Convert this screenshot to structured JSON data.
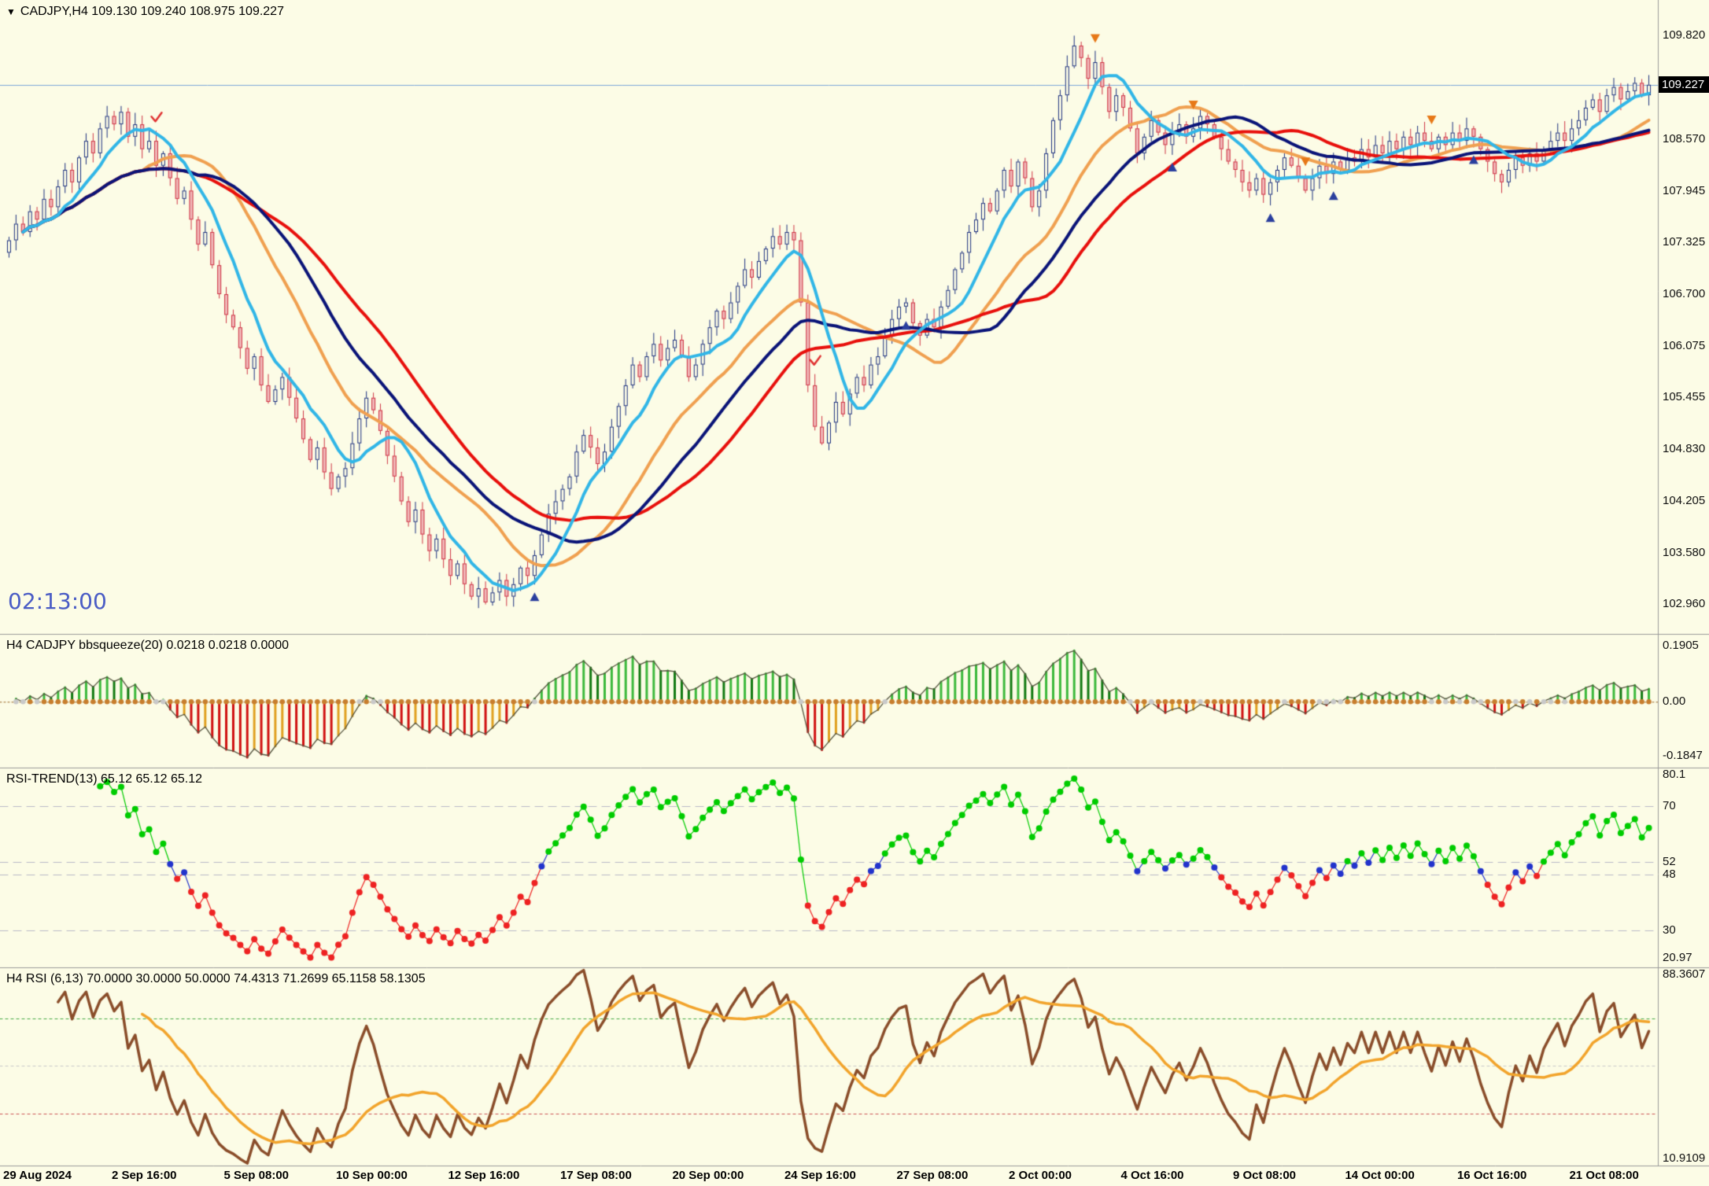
{
  "colors": {
    "bg": "#FCFCE6",
    "separator": "#9a9a9a",
    "text": "#111111",
    "bull": "#1b2f7e",
    "bull_fill": "#FCFCE6",
    "bear": "#cf3545",
    "bear_fill": "#f0b9b9",
    "ma_cyan": "#31b6e7",
    "ma_navy": "#0a1478",
    "ma_red": "#e8100c",
    "ma_orange": "#f0a050",
    "price_line": "#7da7d9",
    "badge_bg": "#000000",
    "badge_fg": "#ffffff",
    "clock": "#4a5cc5",
    "hist_up_rising": "#3cb93c",
    "hist_up_falling": "#117a11",
    "hist_down_falling": "#d01010",
    "hist_down_rising": "#e0a020",
    "hist_outline": "#55543f",
    "zero_dot": "#c87e2e",
    "zero_dot_quiet": "#c9c9c9",
    "zero_line": "#9a6a2a",
    "rt_up": "#00cc00",
    "rt_down": "#ee2222",
    "rt_mid": "#2233cc",
    "rt_level": "#b8b8c8",
    "rsi_fast": "#8a4d2a",
    "rsi_signal": "#f2a42c",
    "rsi_ob": "#44aa44",
    "rsi_os": "#cc5555",
    "rsi_mid": "#c9c9c9",
    "arrow_up": "#2a3f9e",
    "arrow_down": "#e77817",
    "sell_mark": "#e03131"
  },
  "main": {
    "dropdown_icon": "▼",
    "title_text": "CADJPY,H4 109.130 109.240 108.975 109.227",
    "clock": "02:13:00",
    "current_price": 109.227,
    "current_price_label": "109.227",
    "axis_ticks": [
      "109.820",
      "108.570",
      "107.945",
      "107.325",
      "106.700",
      "106.075",
      "105.455",
      "104.830",
      "104.205",
      "103.580",
      "102.960"
    ],
    "range": [
      102.6,
      110.25
    ]
  },
  "panels": {
    "bbsqueeze": {
      "title": "H4 CADJPY bbsqueeze(20) 0.0218 0.0218 0.0000",
      "axis_ticks": [
        "0.1905",
        "0.00",
        "-0.1847"
      ],
      "range": [
        -0.225,
        0.232
      ]
    },
    "rsi_trend": {
      "title": "RSI-TREND(13) 65.12 65.12 65.12",
      "axis_ticks": [
        "80.1",
        "70",
        "52",
        "48",
        "30",
        "20.97"
      ],
      "levels": [
        70,
        52,
        48,
        30
      ],
      "upper_color_threshold": 52,
      "lower_color_threshold": 48,
      "period": 13,
      "range": [
        18.0,
        82.5
      ]
    },
    "rsi": {
      "title": "H4 RSI  (6,13) 70.0000 30.0000 50.0000 74.4313 71.2699 65.1158 58.1305",
      "axis_ticks": [
        "88.3607",
        "10.9109"
      ],
      "overbought": 70,
      "oversold": 30,
      "midline": 50,
      "fast_period": 6,
      "signal_period": 13,
      "range": [
        8.0,
        91.5
      ]
    }
  },
  "chart_data": {
    "type": "candlestick",
    "symbol": "CADJPY",
    "timeframe": "H4",
    "high_watermark": 109.82,
    "low_watermark": 102.96,
    "bb_scale_target": 0.19,
    "ma_periods": {
      "cyan": 8,
      "navy": 28,
      "orange": 20,
      "red": 36
    },
    "closes": [
      107.35,
      107.55,
      107.45,
      107.7,
      107.6,
      107.85,
      107.75,
      108.0,
      108.2,
      108.05,
      108.35,
      108.55,
      108.4,
      108.7,
      108.85,
      108.75,
      108.9,
      108.6,
      108.75,
      108.45,
      108.55,
      108.25,
      108.4,
      108.1,
      107.85,
      107.95,
      107.6,
      107.3,
      107.45,
      107.05,
      106.7,
      106.45,
      106.3,
      106.05,
      105.8,
      105.95,
      105.6,
      105.4,
      105.55,
      105.7,
      105.45,
      105.2,
      104.95,
      104.7,
      104.85,
      104.55,
      104.35,
      104.5,
      104.6,
      104.9,
      105.2,
      105.45,
      105.3,
      105.05,
      104.75,
      104.5,
      104.2,
      103.95,
      104.1,
      103.8,
      103.6,
      103.75,
      103.5,
      103.3,
      103.45,
      103.2,
      103.05,
      103.15,
      102.98,
      103.1,
      103.25,
      103.05,
      103.2,
      103.4,
      103.3,
      103.55,
      103.8,
      104.05,
      104.2,
      104.35,
      104.5,
      104.8,
      105.0,
      104.85,
      104.65,
      104.8,
      105.1,
      105.35,
      105.6,
      105.85,
      105.7,
      105.95,
      106.1,
      105.9,
      106.05,
      106.15,
      105.95,
      105.7,
      105.85,
      106.1,
      106.3,
      106.5,
      106.4,
      106.6,
      106.8,
      107.0,
      106.9,
      107.1,
      107.25,
      107.4,
      107.3,
      107.45,
      107.35,
      106.6,
      105.6,
      105.1,
      104.9,
      105.15,
      105.4,
      105.25,
      105.5,
      105.7,
      105.6,
      105.85,
      105.95,
      106.2,
      106.4,
      106.55,
      106.6,
      106.35,
      106.2,
      106.4,
      106.3,
      106.55,
      106.75,
      107.0,
      107.2,
      107.45,
      107.6,
      107.8,
      107.7,
      107.95,
      108.2,
      108.0,
      108.3,
      108.1,
      107.75,
      107.95,
      108.4,
      108.8,
      109.1,
      109.45,
      109.7,
      109.55,
      109.3,
      109.5,
      109.2,
      108.9,
      109.1,
      108.95,
      108.7,
      108.4,
      108.6,
      108.8,
      108.65,
      108.5,
      108.65,
      108.75,
      108.6,
      108.7,
      108.85,
      108.75,
      108.6,
      108.45,
      108.3,
      108.2,
      108.05,
      107.95,
      108.1,
      107.9,
      108.05,
      108.2,
      108.35,
      108.25,
      108.1,
      107.95,
      108.1,
      108.25,
      108.15,
      108.3,
      108.2,
      108.35,
      108.3,
      108.45,
      108.35,
      108.5,
      108.4,
      108.55,
      108.45,
      108.6,
      108.5,
      108.65,
      108.55,
      108.45,
      108.6,
      108.5,
      108.65,
      108.55,
      108.7,
      108.6,
      108.45,
      108.3,
      108.15,
      108.05,
      108.2,
      108.35,
      108.25,
      108.4,
      108.3,
      108.45,
      108.55,
      108.65,
      108.55,
      108.7,
      108.8,
      108.95,
      109.05,
      108.9,
      109.1,
      109.2,
      109.05,
      109.15,
      109.25,
      109.1,
      109.227
    ],
    "time_labels": [
      {
        "label": "29 Aug 2024",
        "bar": 0
      },
      {
        "label": "2 Sep 16:00",
        "bar": 16
      },
      {
        "label": "5 Sep 08:00",
        "bar": 32
      },
      {
        "label": "10 Sep 00:00",
        "bar": 48
      },
      {
        "label": "12 Sep 16:00",
        "bar": 64
      },
      {
        "label": "17 Sep 08:00",
        "bar": 80
      },
      {
        "label": "20 Sep 00:00",
        "bar": 96
      },
      {
        "label": "24 Sep 16:00",
        "bar": 112
      },
      {
        "label": "27 Sep 08:00",
        "bar": 128
      },
      {
        "label": "2 Oct 00:00",
        "bar": 144
      },
      {
        "label": "4 Oct 16:00",
        "bar": 160
      },
      {
        "label": "9 Oct 08:00",
        "bar": 176
      },
      {
        "label": "14 Oct 00:00",
        "bar": 192
      },
      {
        "label": "16 Oct 16:00",
        "bar": 208
      },
      {
        "label": "21 Oct 08:00",
        "bar": 224
      }
    ],
    "signals": {
      "up_arrows": [
        75,
        128,
        166,
        180,
        189,
        209
      ],
      "down_arrows": [
        155,
        169,
        185,
        203
      ],
      "sell_marks": [
        21,
        115
      ]
    }
  }
}
